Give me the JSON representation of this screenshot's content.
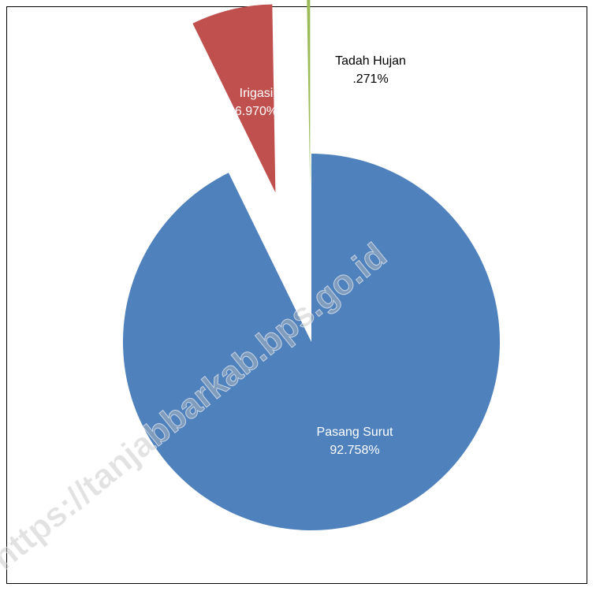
{
  "chart_data": {
    "type": "pie",
    "title": "",
    "start_angle_deg": 0,
    "direction": "clockwise",
    "slices": [
      {
        "label": "Pasang Surut",
        "value": 92.758,
        "value_text": "92.758%",
        "color": "#4f81bd",
        "label_color": "#ffffff",
        "exploded": false
      },
      {
        "label": "Irigasi",
        "value": 6.97,
        "value_text": "6.970%",
        "color": "#c0504d",
        "label_color": "#ffffff",
        "exploded": true
      },
      {
        "label": "Tadah Hujan",
        "value": 0.271,
        "value_text": ".271%",
        "color": "#9bbb59",
        "label_color": "#000000",
        "exploded": true
      }
    ],
    "legend": "none"
  },
  "watermark": {
    "text": "https://tanjabbarkab.bps.go.id"
  }
}
